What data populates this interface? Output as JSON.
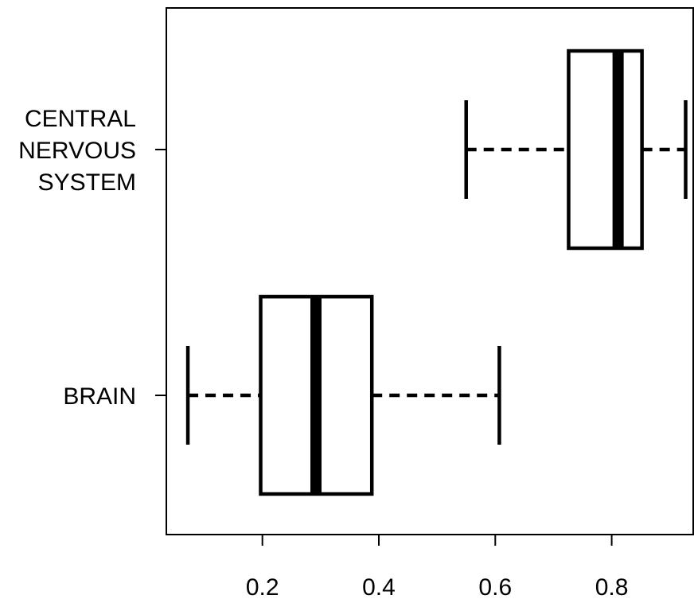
{
  "chart_data": {
    "type": "boxplot",
    "orientation": "horizontal",
    "title": "",
    "xlabel": "",
    "ylabel": "",
    "xlim": [
      0.035,
      0.94
    ],
    "x_ticks": [
      0.2,
      0.4,
      0.6,
      0.8
    ],
    "x_tick_labels": [
      "0.2",
      "0.4",
      "0.6",
      "0.8"
    ],
    "grid": false,
    "boxes": [
      {
        "label_lines": [
          "CENTRAL",
          "NERVOUS",
          "SYSTEM"
        ],
        "whisker_low": 0.55,
        "q1": 0.726,
        "median": 0.811,
        "q3": 0.852,
        "whisker_high": 0.927
      },
      {
        "label_lines": [
          "BRAIN"
        ],
        "whisker_low": 0.072,
        "q1": 0.197,
        "median": 0.292,
        "q3": 0.388,
        "whisker_high": 0.607
      }
    ]
  }
}
